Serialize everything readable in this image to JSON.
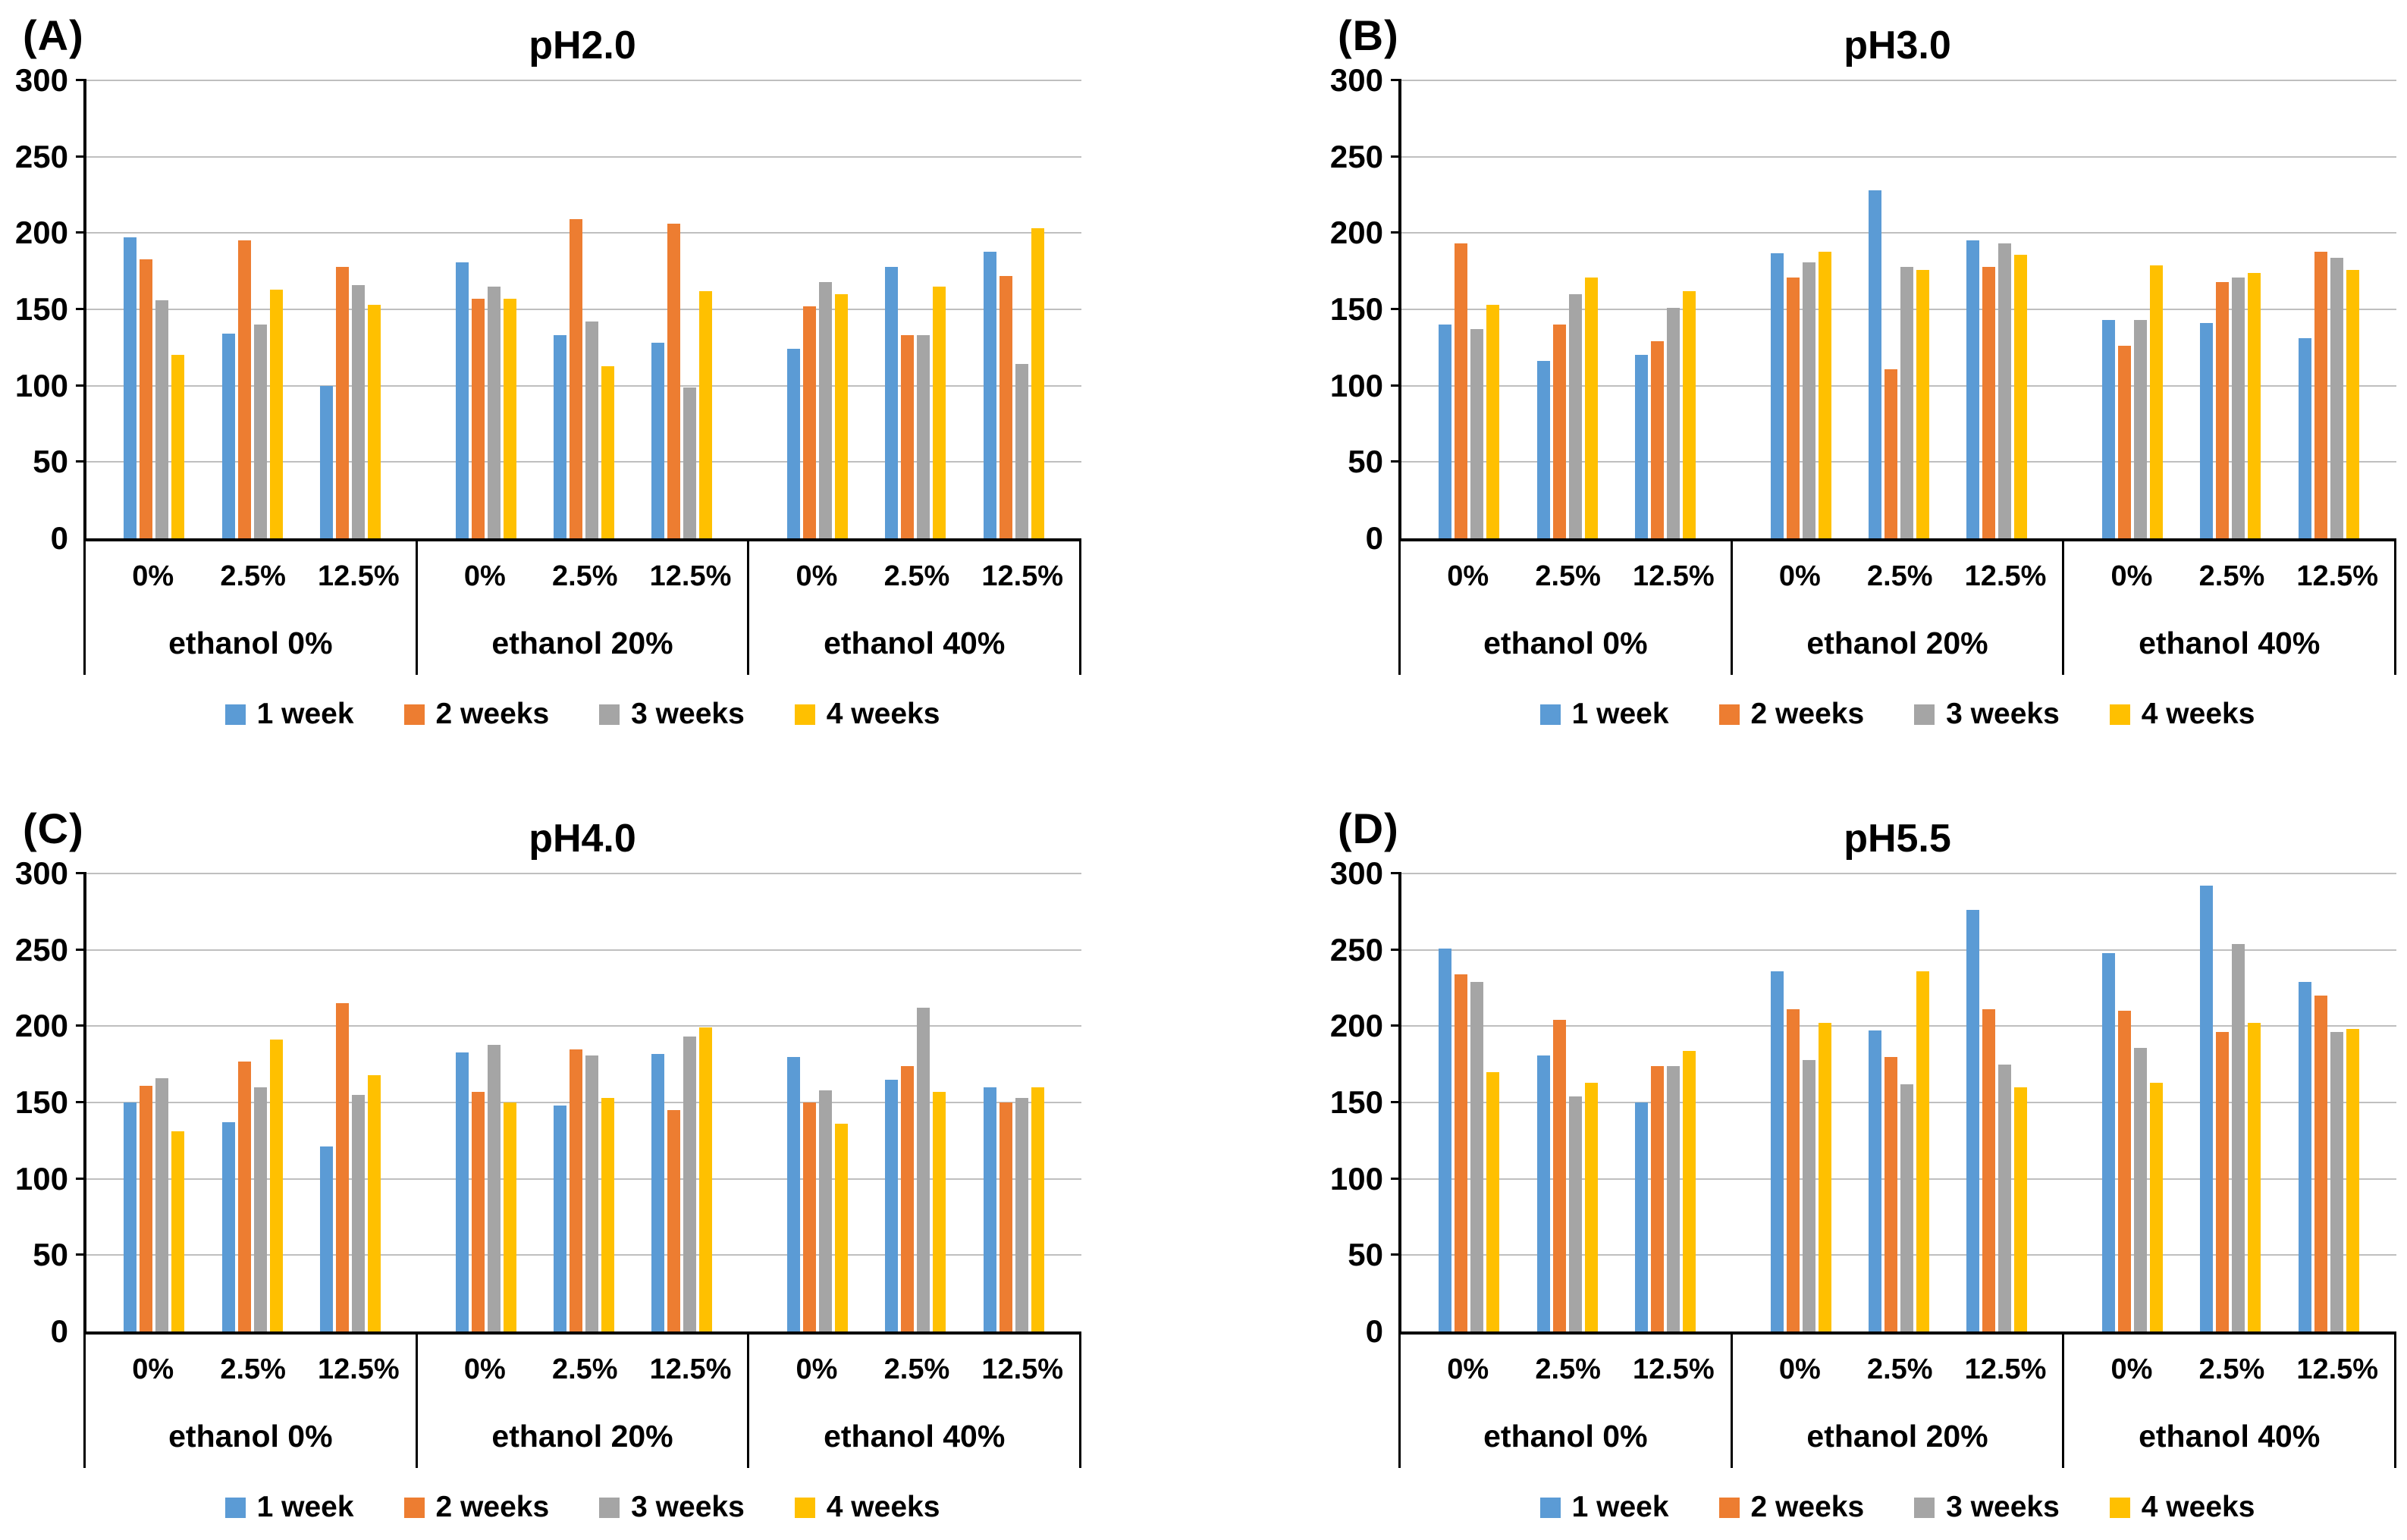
{
  "series": [
    {
      "name": "1 week",
      "color": "#5B9BD5"
    },
    {
      "name": "2 weeks",
      "color": "#ED7D31"
    },
    {
      "name": "3 weeks",
      "color": "#A5A5A5"
    },
    {
      "name": "4 weeks",
      "color": "#FFC000"
    }
  ],
  "y_axis": {
    "min": 0,
    "max": 300,
    "step": 50,
    "ticks": [
      0,
      50,
      100,
      150,
      200,
      250,
      300
    ]
  },
  "style_colors": {
    "gridline": "#BFBFBF",
    "axis": "#000000",
    "background": "#FFFFFF"
  },
  "chart_data": [
    {
      "type": "bar",
      "panel_label": "(A)",
      "title": "pH2.0",
      "ylim": [
        0,
        300
      ],
      "grid": true,
      "legend_position": "bottom",
      "series_names": [
        "1 week",
        "2 weeks",
        "3 weeks",
        "4 weeks"
      ],
      "sections": [
        {
          "label": "ethanol 0%",
          "groups": [
            {
              "label": "0%",
              "values": [
                197,
                183,
                156,
                120
              ]
            },
            {
              "label": "2.5%",
              "values": [
                134,
                195,
                140,
                163
              ]
            },
            {
              "label": "12.5%",
              "values": [
                100,
                178,
                166,
                153
              ]
            }
          ]
        },
        {
          "label": "ethanol 20%",
          "groups": [
            {
              "label": "0%",
              "values": [
                181,
                157,
                165,
                157
              ]
            },
            {
              "label": "2.5%",
              "values": [
                133,
                209,
                142,
                113
              ]
            },
            {
              "label": "12.5%",
              "values": [
                128,
                206,
                99,
                162
              ]
            }
          ]
        },
        {
          "label": "ethanol 40%",
          "groups": [
            {
              "label": "0%",
              "values": [
                124,
                152,
                168,
                160
              ]
            },
            {
              "label": "2.5%",
              "values": [
                178,
                133,
                133,
                165
              ]
            },
            {
              "label": "12.5%",
              "values": [
                188,
                172,
                114,
                203
              ]
            }
          ]
        }
      ]
    },
    {
      "type": "bar",
      "panel_label": "(B)",
      "title": "pH3.0",
      "ylim": [
        0,
        300
      ],
      "grid": true,
      "legend_position": "bottom",
      "series_names": [
        "1 week",
        "2 weeks",
        "3 weeks",
        "4 weeks"
      ],
      "sections": [
        {
          "label": "ethanol 0%",
          "groups": [
            {
              "label": "0%",
              "values": [
                140,
                193,
                137,
                153
              ]
            },
            {
              "label": "2.5%",
              "values": [
                116,
                140,
                160,
                171
              ]
            },
            {
              "label": "12.5%",
              "values": [
                120,
                129,
                151,
                162
              ]
            }
          ]
        },
        {
          "label": "ethanol 20%",
          "groups": [
            {
              "label": "0%",
              "values": [
                187,
                171,
                181,
                188
              ]
            },
            {
              "label": "2.5%",
              "values": [
                228,
                111,
                178,
                176
              ]
            },
            {
              "label": "12.5%",
              "values": [
                195,
                178,
                193,
                186
              ]
            }
          ]
        },
        {
          "label": "ethanol 40%",
          "groups": [
            {
              "label": "0%",
              "values": [
                143,
                126,
                143,
                179
              ]
            },
            {
              "label": "2.5%",
              "values": [
                141,
                168,
                171,
                174
              ]
            },
            {
              "label": "12.5%",
              "values": [
                131,
                188,
                184,
                176
              ]
            }
          ]
        }
      ]
    },
    {
      "type": "bar",
      "panel_label": "(C)",
      "title": "pH4.0",
      "ylim": [
        0,
        300
      ],
      "grid": true,
      "legend_position": "bottom",
      "series_names": [
        "1 week",
        "2 weeks",
        "3 weeks",
        "4 weeks"
      ],
      "sections": [
        {
          "label": "ethanol 0%",
          "groups": [
            {
              "label": "0%",
              "values": [
                150,
                161,
                166,
                131
              ]
            },
            {
              "label": "2.5%",
              "values": [
                137,
                177,
                160,
                191
              ]
            },
            {
              "label": "12.5%",
              "values": [
                121,
                215,
                155,
                168
              ]
            }
          ]
        },
        {
          "label": "ethanol 20%",
          "groups": [
            {
              "label": "0%",
              "values": [
                183,
                157,
                188,
                150
              ]
            },
            {
              "label": "2.5%",
              "values": [
                148,
                185,
                181,
                153
              ]
            },
            {
              "label": "12.5%",
              "values": [
                182,
                145,
                193,
                199
              ]
            }
          ]
        },
        {
          "label": "ethanol 40%",
          "groups": [
            {
              "label": "0%",
              "values": [
                180,
                150,
                158,
                136
              ]
            },
            {
              "label": "2.5%",
              "values": [
                165,
                174,
                212,
                157
              ]
            },
            {
              "label": "12.5%",
              "values": [
                160,
                150,
                153,
                160
              ]
            }
          ]
        }
      ]
    },
    {
      "type": "bar",
      "panel_label": "(D)",
      "title": "pH5.5",
      "ylim": [
        0,
        300
      ],
      "grid": true,
      "legend_position": "bottom",
      "series_names": [
        "1 week",
        "2 weeks",
        "3 weeks",
        "4 weeks"
      ],
      "sections": [
        {
          "label": "ethanol 0%",
          "groups": [
            {
              "label": "0%",
              "values": [
                251,
                234,
                229,
                170
              ]
            },
            {
              "label": "2.5%",
              "values": [
                181,
                204,
                154,
                163
              ]
            },
            {
              "label": "12.5%",
              "values": [
                150,
                174,
                174,
                184
              ]
            }
          ]
        },
        {
          "label": "ethanol 20%",
          "groups": [
            {
              "label": "0%",
              "values": [
                236,
                211,
                178,
                202
              ]
            },
            {
              "label": "2.5%",
              "values": [
                197,
                180,
                162,
                236
              ]
            },
            {
              "label": "12.5%",
              "values": [
                276,
                211,
                175,
                160
              ]
            }
          ]
        },
        {
          "label": "ethanol 40%",
          "groups": [
            {
              "label": "0%",
              "values": [
                248,
                210,
                186,
                163
              ]
            },
            {
              "label": "2.5%",
              "values": [
                292,
                196,
                254,
                202
              ]
            },
            {
              "label": "12.5%",
              "values": [
                229,
                220,
                196,
                198
              ]
            }
          ]
        }
      ]
    }
  ]
}
